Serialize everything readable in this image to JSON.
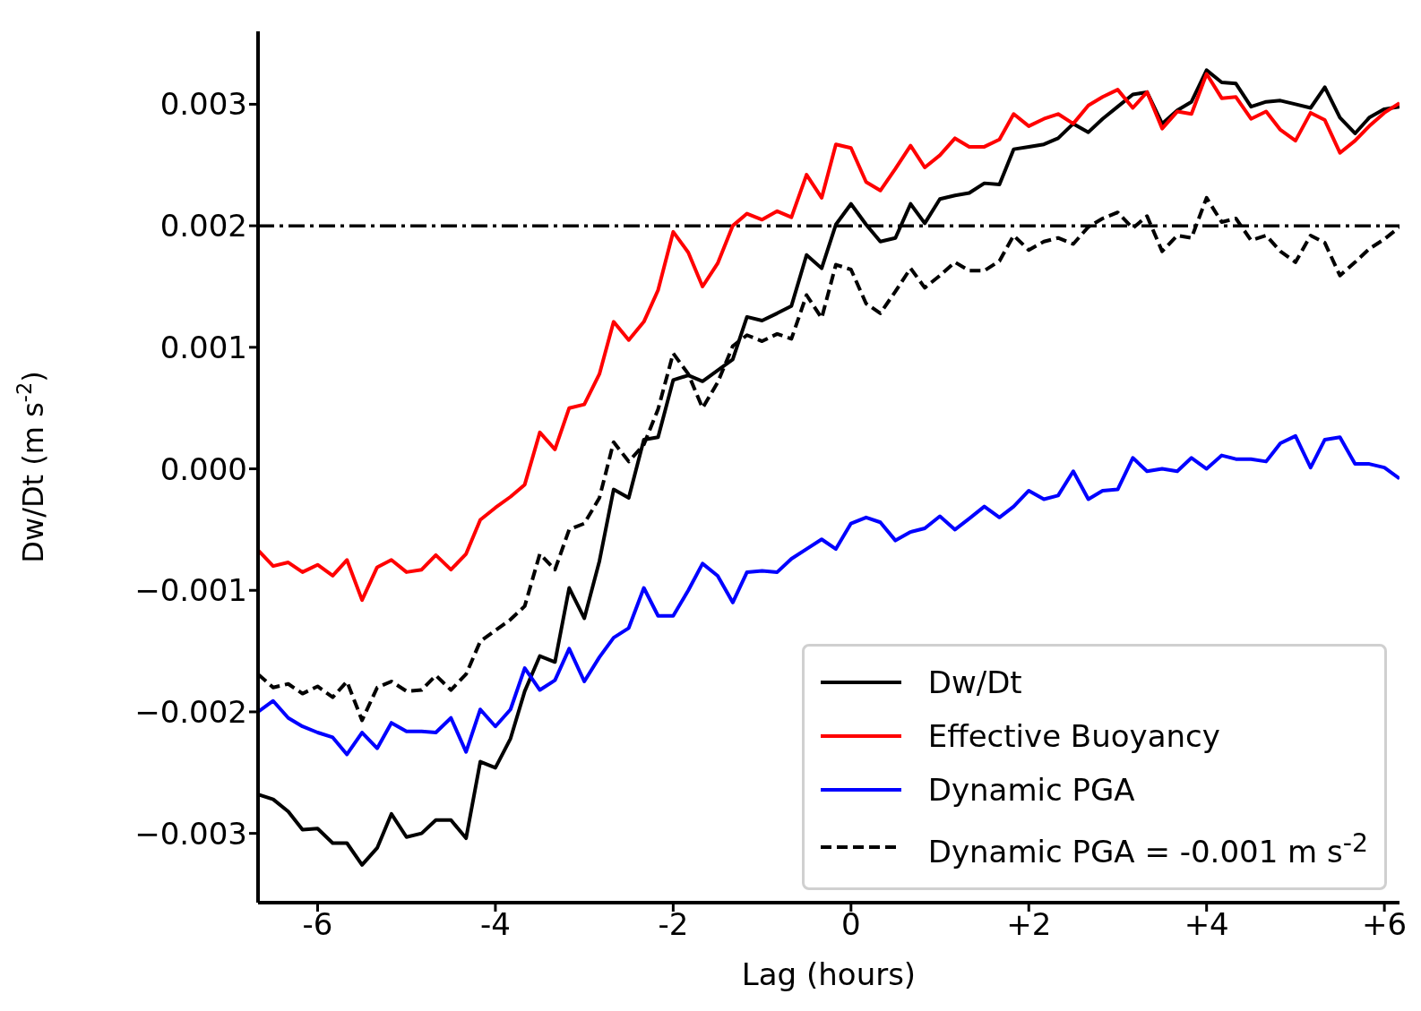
{
  "chart_data": {
    "type": "line",
    "xlabel": "Lag (hours)",
    "ylabel": "Dw/Dt (m s$^{-2}$)",
    "x": [
      -6.67,
      -6.5,
      -6.33,
      -6.17,
      -6,
      -5.83,
      -5.67,
      -5.5,
      -5.33,
      -5.17,
      -5,
      -4.83,
      -4.67,
      -4.5,
      -4.33,
      -4.17,
      -4,
      -3.83,
      -3.67,
      -3.5,
      -3.33,
      -3.17,
      -3,
      -2.83,
      -2.67,
      -2.5,
      -2.33,
      -2.17,
      -2,
      -1.83,
      -1.67,
      -1.5,
      -1.33,
      -1.17,
      -1,
      -0.83,
      -0.67,
      -0.5,
      -0.33,
      -0.17,
      0,
      0.17,
      0.33,
      0.5,
      0.67,
      0.83,
      1,
      1.17,
      1.33,
      1.5,
      1.67,
      1.83,
      2,
      2.17,
      2.33,
      2.5,
      2.67,
      2.83,
      3,
      3.17,
      3.33,
      3.5,
      3.67,
      3.83,
      4,
      4.17,
      4.33,
      4.5,
      4.67,
      4.83,
      5,
      5.17,
      5.33,
      5.5,
      5.67,
      5.83,
      6,
      6.17
    ],
    "series": [
      {
        "name": "Dw/Dt",
        "color": "#000000",
        "values": [
          -0.00268,
          -0.00272,
          -0.00282,
          -0.00297,
          -0.00296,
          -0.00308,
          -0.00308,
          -0.00326,
          -0.00312,
          -0.00284,
          -0.00303,
          -0.003,
          -0.00289,
          -0.00289,
          -0.00304,
          -0.00241,
          -0.00246,
          -0.00222,
          -0.00183,
          -0.00154,
          -0.00159,
          -0.00098,
          -0.00123,
          -0.00076,
          -0.00017,
          -0.00024,
          0.00024,
          0.00026,
          0.00073,
          0.00077,
          0.00072,
          0.00081,
          0.0009,
          0.00125,
          0.00122,
          0.00128,
          0.00134,
          0.00176,
          0.00165,
          0.00201,
          0.00218,
          0.00201,
          0.00187,
          0.0019,
          0.00218,
          0.00202,
          0.00222,
          0.00225,
          0.00227,
          0.00235,
          0.00234,
          0.00263,
          0.00265,
          0.00267,
          0.00272,
          0.00284,
          0.00277,
          0.00288,
          0.00298,
          0.00308,
          0.0031,
          0.00284,
          0.00295,
          0.00302,
          0.00328,
          0.00318,
          0.00317,
          0.00298,
          0.00302,
          0.00303,
          0.003,
          0.00297,
          0.00314,
          0.00289,
          0.00276,
          0.00289,
          0.00296,
          0.00298
        ]
      },
      {
        "name": "Effective Buoyancy",
        "color": "#ff0000",
        "values": [
          -0.00067,
          -0.0008,
          -0.00077,
          -0.00085,
          -0.00079,
          -0.00088,
          -0.00075,
          -0.00108,
          -0.00081,
          -0.00075,
          -0.00085,
          -0.00083,
          -0.00071,
          -0.00083,
          -0.0007,
          -0.00042,
          -0.00032,
          -0.00023,
          -0.00013,
          0.0003,
          0.00016,
          0.0005,
          0.00053,
          0.00078,
          0.00121,
          0.00106,
          0.00121,
          0.00147,
          0.00195,
          0.00178,
          0.0015,
          0.00169,
          0.002,
          0.0021,
          0.00205,
          0.00212,
          0.00207,
          0.00242,
          0.00223,
          0.00267,
          0.00264,
          0.00236,
          0.00229,
          0.00247,
          0.00266,
          0.00248,
          0.00258,
          0.00272,
          0.00265,
          0.00265,
          0.00271,
          0.00292,
          0.00282,
          0.00288,
          0.00292,
          0.00284,
          0.00299,
          0.00306,
          0.00312,
          0.00297,
          0.0031,
          0.0028,
          0.00294,
          0.00292,
          0.00325,
          0.00305,
          0.00306,
          0.00288,
          0.00294,
          0.00279,
          0.0027,
          0.00293,
          0.00287,
          0.0026,
          0.0027,
          0.00282,
          0.00293,
          0.00301
        ]
      },
      {
        "name": "Dynamic PGA",
        "color": "#0000ff",
        "values": [
          -0.002,
          -0.00191,
          -0.00205,
          -0.00212,
          -0.00217,
          -0.00221,
          -0.00235,
          -0.00217,
          -0.0023,
          -0.00209,
          -0.00216,
          -0.00216,
          -0.00217,
          -0.00205,
          -0.00233,
          -0.00198,
          -0.00212,
          -0.00198,
          -0.00164,
          -0.00182,
          -0.00174,
          -0.00148,
          -0.00175,
          -0.00155,
          -0.00139,
          -0.00131,
          -0.00098,
          -0.00121,
          -0.00121,
          -0.001,
          -0.00078,
          -0.00088,
          -0.0011,
          -0.00085,
          -0.00084,
          -0.00085,
          -0.00074,
          -0.00066,
          -0.00058,
          -0.00066,
          -0.00045,
          -0.0004,
          -0.00044,
          -0.00059,
          -0.00052,
          -0.00049,
          -0.00039,
          -0.0005,
          -0.00041,
          -0.00031,
          -0.0004,
          -0.00031,
          -0.00018,
          -0.00025,
          -0.00022,
          -2e-05,
          -0.00025,
          -0.00018,
          -0.00017,
          9e-05,
          -2e-05,
          0,
          -2e-05,
          9e-05,
          0,
          0.00011,
          8e-05,
          8e-05,
          6e-05,
          0.00021,
          0.00027,
          1e-05,
          0.00024,
          0.00026,
          4e-05,
          4e-05,
          1e-05,
          -8e-05
        ]
      },
      {
        "name": "Dynamic PGA = -0.001 m s$^{-2}$",
        "color": "#000000",
        "line_style": "dashed",
        "values": [
          -0.00169,
          -0.0018,
          -0.00177,
          -0.00185,
          -0.00179,
          -0.00188,
          -0.00175,
          -0.00207,
          -0.0018,
          -0.00175,
          -0.00183,
          -0.00182,
          -0.0017,
          -0.00182,
          -0.00169,
          -0.00142,
          -0.00133,
          -0.00124,
          -0.00113,
          -0.0007,
          -0.00083,
          -0.0005,
          -0.00045,
          -0.00024,
          0.00022,
          6e-05,
          0.0002,
          0.00049,
          0.00095,
          0.00078,
          0.0005,
          0.00071,
          0.00101,
          0.0011,
          0.00105,
          0.00111,
          0.00107,
          0.00143,
          0.00124,
          0.00168,
          0.00164,
          0.00136,
          0.00128,
          0.00146,
          0.00165,
          0.00149,
          0.00159,
          0.0017,
          0.00163,
          0.00163,
          0.00171,
          0.00192,
          0.0018,
          0.00187,
          0.0019,
          0.00185,
          0.00199,
          0.00206,
          0.00211,
          0.00198,
          0.00208,
          0.00179,
          0.00192,
          0.0019,
          0.00223,
          0.00203,
          0.00206,
          0.00188,
          0.00192,
          0.00179,
          0.0017,
          0.00192,
          0.00186,
          0.00159,
          0.0017,
          0.00181,
          0.00189,
          0.00199
        ]
      }
    ],
    "xlim": [
      -6.67,
      6.17
    ],
    "xticks": [
      {
        "value": -6,
        "label": "-6"
      },
      {
        "value": -4,
        "label": "-4"
      },
      {
        "value": -2,
        "label": "-2"
      },
      {
        "value": 0,
        "label": "0"
      },
      {
        "value": 2,
        "label": "+2"
      },
      {
        "value": 4,
        "label": "+4"
      },
      {
        "value": 6,
        "label": "+6"
      }
    ],
    "ylim": [
      -0.00357,
      0.0036
    ],
    "yticks": [
      {
        "value": -0.003,
        "label": "−0.003"
      },
      {
        "value": -0.002,
        "label": "−0.002"
      },
      {
        "value": -0.001,
        "label": "−0.001"
      },
      {
        "value": 0,
        "label": "0.000"
      },
      {
        "value": 0.001,
        "label": "0.001"
      },
      {
        "value": 0.002,
        "label": "0.002"
      },
      {
        "value": 0.003,
        "label": "0.003"
      }
    ],
    "ref_lines": [
      {
        "axis": "y",
        "value": 0.002,
        "color": "#000000",
        "line_style": "dashdot"
      }
    ],
    "grid": false,
    "legend": "bottom right"
  }
}
